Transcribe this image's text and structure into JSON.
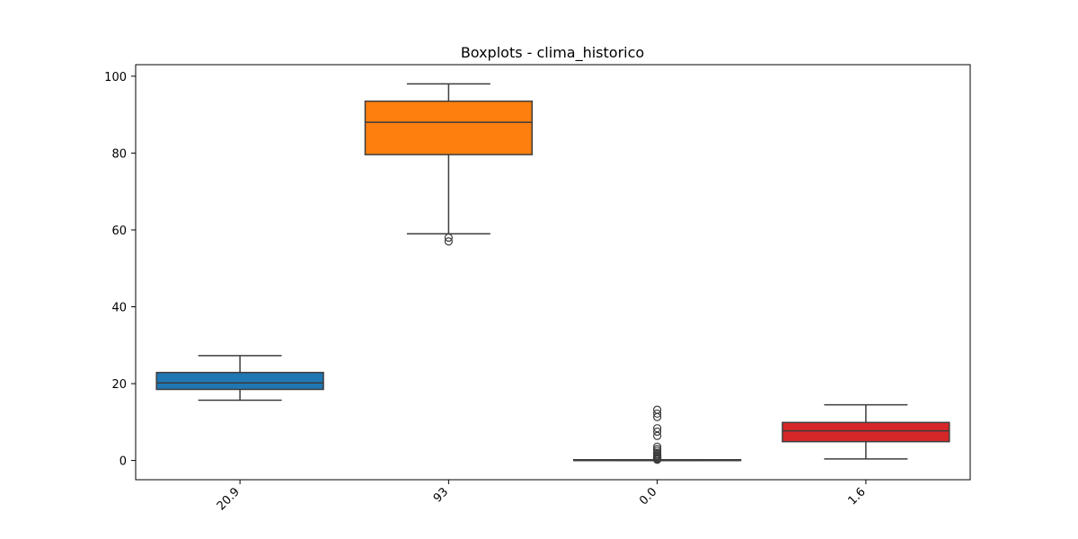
{
  "chart_data": {
    "type": "boxplot",
    "title": "Boxplots - clima_historico",
    "xlabel": "",
    "ylabel": "",
    "categories": [
      "20.9",
      "93",
      "0.0",
      "1.6"
    ],
    "ylim": [
      -5,
      103
    ],
    "yticks": [
      0,
      20,
      40,
      60,
      80,
      100
    ],
    "grid": false,
    "boxes": [
      {
        "label": "20.9",
        "color": "#1f77b4",
        "whisker_low": 15.7,
        "q1": 18.5,
        "median": 20.2,
        "q3": 22.9,
        "whisker_high": 27.3,
        "outliers": []
      },
      {
        "label": "93",
        "color": "#ff7f0e",
        "whisker_low": 59.0,
        "q1": 79.6,
        "median": 88.0,
        "q3": 93.5,
        "whisker_high": 98.0,
        "outliers": [
          58.0,
          57.0
        ]
      },
      {
        "label": "0.0",
        "color": "#2ca02c",
        "whisker_low": 0.0,
        "q1": 0.0,
        "median": 0.0,
        "q3": 0.2,
        "whisker_high": 0.2,
        "outliers": [
          0.2,
          0.3,
          0.5,
          0.7,
          1.0,
          1.3,
          1.6,
          2.0,
          2.5,
          3.0,
          3.6,
          6.4,
          7.5,
          8.4,
          11.3,
          12.2,
          13.2
        ]
      },
      {
        "label": "1.6",
        "color": "#d62728",
        "whisker_low": 0.4,
        "q1": 4.9,
        "median": 7.7,
        "q3": 9.9,
        "whisker_high": 14.5,
        "outliers": []
      }
    ]
  }
}
